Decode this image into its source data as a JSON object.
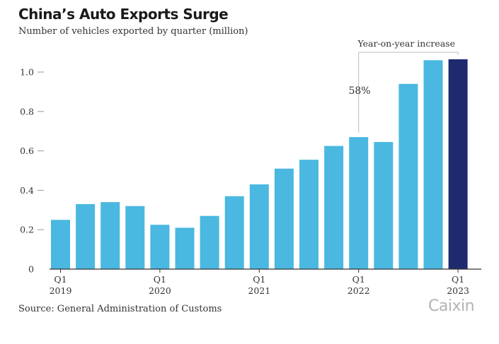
{
  "header": {
    "title": "China’s Auto Exports Surge",
    "subtitle": "Number of vehicles exported by quarter (million)"
  },
  "footer": {
    "source": "Source: General Administration of Customs",
    "logo_text": "Caixin"
  },
  "colors": {
    "bar": "#4ab8e0",
    "highlight": "#1e2a6e",
    "axis": "#333333",
    "tick": "#999999",
    "bracket": "#bbbbbb"
  },
  "chart_data": {
    "type": "bar",
    "title": "China’s Auto Exports Surge",
    "ylabel": "Number of vehicles exported by quarter (million)",
    "ylim": [
      0,
      1.1
    ],
    "yticks": [
      0,
      0.2,
      0.4,
      0.6,
      0.8,
      1.0
    ],
    "ytick_labels": [
      "0",
      "0.2",
      "0.4",
      "0.6",
      "0.8",
      "1.0"
    ],
    "categories": [
      "2019 Q1",
      "2019 Q2",
      "2019 Q3",
      "2019 Q4",
      "2020 Q1",
      "2020 Q2",
      "2020 Q3",
      "2020 Q4",
      "2021 Q1",
      "2021 Q2",
      "2021 Q3",
      "2021 Q4",
      "2022 Q1",
      "2022 Q2",
      "2022 Q3",
      "2022 Q4",
      "2023 Q1"
    ],
    "values": [
      0.25,
      0.33,
      0.34,
      0.32,
      0.225,
      0.21,
      0.27,
      0.37,
      0.43,
      0.51,
      0.555,
      0.625,
      0.67,
      0.645,
      0.94,
      1.06,
      1.065
    ],
    "highlight_index": 16,
    "xtick_labels": [
      {
        "index": 0,
        "quarter": "Q1",
        "year": "2019"
      },
      {
        "index": 4,
        "quarter": "Q1",
        "year": "2020"
      },
      {
        "index": 8,
        "quarter": "Q1",
        "year": "2021"
      },
      {
        "index": 12,
        "quarter": "Q1",
        "year": "2022"
      },
      {
        "index": 16,
        "quarter": "Q1",
        "year": "2023"
      }
    ],
    "annotation": {
      "label": "Year-on-year increase",
      "value": "58%",
      "from_index": 12,
      "to_index": 16
    },
    "grid": false,
    "legend": "none"
  }
}
